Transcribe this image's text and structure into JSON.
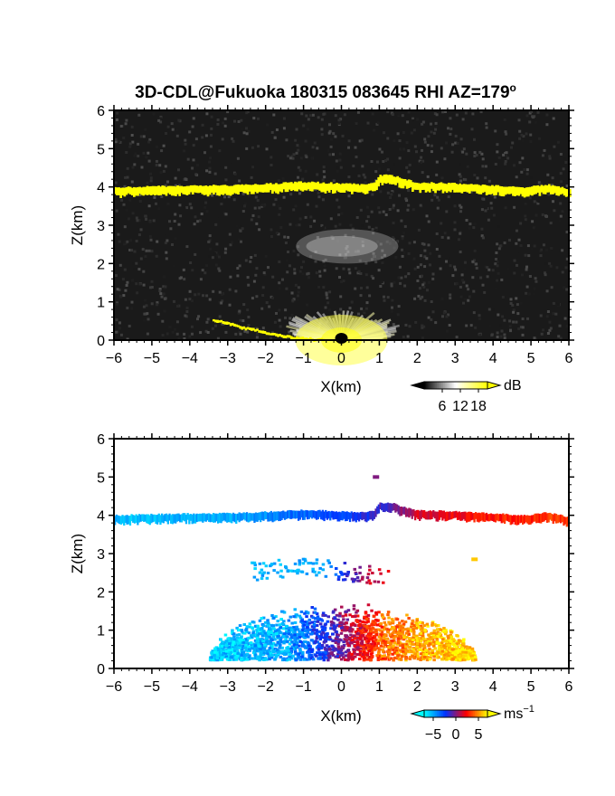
{
  "chart_data": [
    {
      "type": "heatmap",
      "title": "3D-CDL@Fukuoka 180315 083645 RHI AZ=179",
      "title_sup": "o",
      "xlabel": "X(km)",
      "ylabel": "Z(km)",
      "xlim": [
        -6,
        6
      ],
      "ylim": [
        0,
        6
      ],
      "x_ticks": [
        "-6",
        "-5",
        "-4",
        "-3",
        "-2",
        "-1",
        "0",
        "1",
        "2",
        "3",
        "4",
        "5",
        "6"
      ],
      "y_ticks": [
        "0",
        "1",
        "2",
        "3",
        "4",
        "5",
        "6"
      ],
      "colorbar": {
        "unit": "dB",
        "ticks": [
          "6",
          "12",
          "18"
        ],
        "range": [
          0,
          21
        ],
        "colors": [
          "#000000",
          "#ffffff",
          "#ffff00"
        ]
      },
      "background": "#1a1a1a",
      "features": [
        {
          "kind": "layer",
          "desc": "cloud base echo",
          "value": 19,
          "color": "#ffff00",
          "profile": [
            [
              -6.0,
              3.88
            ],
            [
              -5.0,
              3.9
            ],
            [
              -4.0,
              3.92
            ],
            [
              -3.0,
              3.93
            ],
            [
              -2.0,
              3.97
            ],
            [
              -1.0,
              4.02
            ],
            [
              0.0,
              3.98
            ],
            [
              0.5,
              3.95
            ],
            [
              0.85,
              4.0
            ],
            [
              1.0,
              4.2
            ],
            [
              1.3,
              4.2
            ],
            [
              1.6,
              4.1
            ],
            [
              2.0,
              4.0
            ],
            [
              3.0,
              3.98
            ],
            [
              4.0,
              3.92
            ],
            [
              4.8,
              3.88
            ],
            [
              5.0,
              3.9
            ],
            [
              5.4,
              3.95
            ],
            [
              5.7,
              3.9
            ],
            [
              6.0,
              3.82
            ]
          ]
        },
        {
          "kind": "layer",
          "desc": "near-ground strong echo",
          "value": 19,
          "color": "#ffff00",
          "profile": [
            [
              -3.4,
              0.52
            ],
            [
              -3.0,
              0.42
            ],
            [
              -2.5,
              0.3
            ],
            [
              -2.0,
              0.18
            ],
            [
              -1.5,
              0.09
            ],
            [
              -1.0,
              0.03
            ],
            [
              -0.5,
              0.0
            ]
          ]
        },
        {
          "kind": "blob",
          "desc": "weak echo region",
          "x": [
            -1.2,
            1.5
          ],
          "z": [
            2.0,
            2.9
          ],
          "value": 8
        },
        {
          "kind": "fan",
          "desc": "boundary layer echo",
          "x0": 0,
          "z0": 0,
          "radius_km": 2.7,
          "value": 14
        }
      ]
    },
    {
      "type": "heatmap",
      "xlabel": "X(km)",
      "ylabel": "Z(km)",
      "xlim": [
        -6,
        6
      ],
      "ylim": [
        0,
        6
      ],
      "x_ticks": [
        "-6",
        "-5",
        "-4",
        "-3",
        "-2",
        "-1",
        "0",
        "1",
        "2",
        "3",
        "4",
        "5",
        "6"
      ],
      "y_ticks": [
        "0",
        "1",
        "2",
        "3",
        "4",
        "5",
        "6"
      ],
      "colorbar": {
        "unit": "ms",
        "unit_sup": "−1",
        "ticks": [
          "−5",
          "0",
          "5"
        ],
        "range": [
          -7,
          7
        ],
        "colors": [
          "#00ffff",
          "#0033ff",
          "#ff0000",
          "#ffff00"
        ]
      },
      "background": "#ffffff",
      "features": [
        {
          "kind": "velocity-layer",
          "desc": "cloud base velocity",
          "profile": [
            [
              -6.0,
              3.88
            ],
            [
              -5.0,
              3.9
            ],
            [
              -4.0,
              3.92
            ],
            [
              -3.0,
              3.93
            ],
            [
              -2.0,
              3.97
            ],
            [
              -1.0,
              4.02
            ],
            [
              0.0,
              3.98
            ],
            [
              0.5,
              3.95
            ],
            [
              0.85,
              4.0
            ],
            [
              1.0,
              4.2
            ],
            [
              1.3,
              4.2
            ],
            [
              1.6,
              4.1
            ],
            [
              2.0,
              4.0
            ],
            [
              3.0,
              3.98
            ],
            [
              4.0,
              3.92
            ],
            [
              4.8,
              3.88
            ],
            [
              5.0,
              3.9
            ],
            [
              5.4,
              3.95
            ],
            [
              5.7,
              3.9
            ],
            [
              6.0,
              3.82
            ]
          ],
          "velocity": [
            [
              -6.0,
              -5.5
            ],
            [
              -3.0,
              -5.0
            ],
            [
              -1.0,
              -3.5
            ],
            [
              0.6,
              -2.0
            ],
            [
              1.2,
              -1.0
            ],
            [
              2.0,
              1.5
            ],
            [
              3.5,
              2.5
            ],
            [
              5.0,
              3.0
            ],
            [
              6.0,
              3.5
            ]
          ]
        },
        {
          "kind": "velocity-blob",
          "desc": "mid-level echo",
          "x": [
            -2.4,
            1.2
          ],
          "z": [
            2.2,
            2.9
          ],
          "velocity": [
            [
              -2.4,
              -5.5
            ],
            [
              -0.6,
              -5.0
            ],
            [
              0.4,
              0.0
            ],
            [
              1.2,
              2.5
            ]
          ]
        },
        {
          "kind": "velocity-fan",
          "desc": "boundary layer velocity",
          "x": [
            -3.5,
            3.5
          ],
          "z": [
            0.0,
            1.5
          ],
          "velocity": [
            [
              -3.5,
              -6.0
            ],
            [
              -1.5,
              -5.0
            ],
            [
              -0.5,
              -2.0
            ],
            [
              0.1,
              0.5
            ],
            [
              1.0,
              4.0
            ],
            [
              2.5,
              6.0
            ],
            [
              3.5,
              6.5
            ]
          ]
        },
        {
          "kind": "point",
          "x": 0.9,
          "z": 5.0,
          "velocity": 0
        },
        {
          "kind": "point",
          "x": 3.5,
          "z": 2.85,
          "velocity": 6
        }
      ]
    }
  ]
}
